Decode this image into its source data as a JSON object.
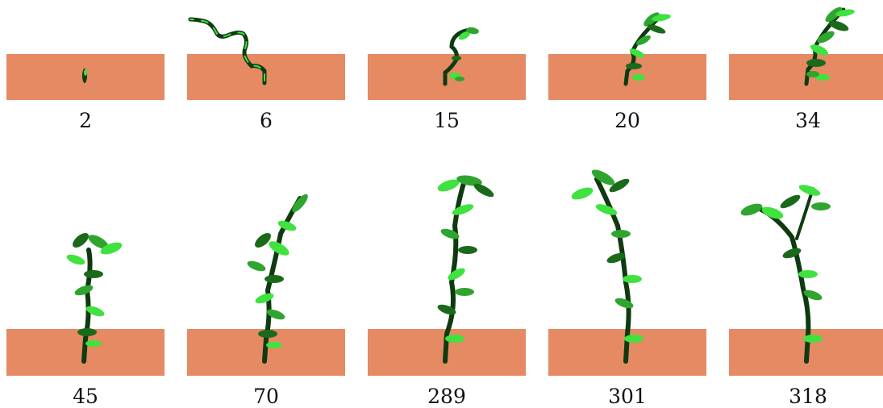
{
  "figure": {
    "rows": [
      {
        "panels": [
          {
            "label": "2"
          },
          {
            "label": "6"
          },
          {
            "label": "15"
          },
          {
            "label": "20"
          },
          {
            "label": "34"
          }
        ]
      },
      {
        "panels": [
          {
            "label": "45"
          },
          {
            "label": "70"
          },
          {
            "label": "289"
          },
          {
            "label": "301"
          },
          {
            "label": "318"
          }
        ]
      }
    ]
  },
  "colors": {
    "ground": "#e58a63",
    "stem_dark": "#0f3a10",
    "leaf_dark": "#1b6a1b",
    "leaf_mid": "#2fa52f",
    "leaf_light": "#3fe23f",
    "background": "#ffffff"
  }
}
